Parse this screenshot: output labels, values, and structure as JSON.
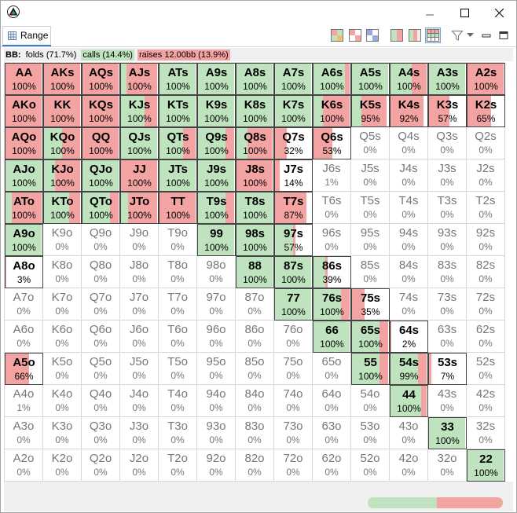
{
  "window": {
    "icon": "triangle-logo-icon",
    "controls": [
      "minimize-icon",
      "maximize-icon",
      "close-icon"
    ]
  },
  "view": {
    "tab_label": "Range",
    "tab_icon": "range-grid-icon",
    "toolbar": [
      "quadrant-view-1-icon",
      "quadrant-view-2-icon",
      "quadrant-view-3-icon",
      "split-color-view-icon",
      "bar-color-view-icon",
      "grid-color-view-icon",
      "filter-icon",
      "view-menu-icon",
      "minimize-view-icon",
      "maximize-view-icon"
    ]
  },
  "summary": {
    "player": "BB:",
    "folds": "folds (71.7%)",
    "calls": "calls (14.4%)",
    "raises": "raises 12.00bb (13.9%)"
  },
  "colors": {
    "call": "#bfe2bf",
    "raise": "#f4a3a3",
    "fold": "#ffffff"
  },
  "legend_bar": {
    "calls": 14.4,
    "raises": 13.9
  },
  "matrix": [
    [
      {
        "hand": "AA",
        "pct": "100%",
        "call": 0,
        "raise": 1
      },
      {
        "hand": "AKs",
        "pct": "100%",
        "call": 0,
        "raise": 1
      },
      {
        "hand": "AQs",
        "pct": "100%",
        "call": 0,
        "raise": 1
      },
      {
        "hand": "AJs",
        "pct": "100%",
        "call": 0.15,
        "raise": 0.85
      },
      {
        "hand": "ATs",
        "pct": "100%",
        "call": 1,
        "raise": 0
      },
      {
        "hand": "A9s",
        "pct": "100%",
        "call": 1,
        "raise": 0
      },
      {
        "hand": "A8s",
        "pct": "100%",
        "call": 1,
        "raise": 0
      },
      {
        "hand": "A7s",
        "pct": "100%",
        "call": 1,
        "raise": 0
      },
      {
        "hand": "A6s",
        "pct": "100%",
        "call": 0.88,
        "raise": 0.12
      },
      {
        "hand": "A5s",
        "pct": "100%",
        "call": 1,
        "raise": 0
      },
      {
        "hand": "A4s",
        "pct": "100%",
        "call": 0.58,
        "raise": 0.42
      },
      {
        "hand": "A3s",
        "pct": "100%",
        "call": 1,
        "raise": 0
      },
      {
        "hand": "A2s",
        "pct": "100%",
        "call": 0,
        "raise": 1
      }
    ],
    [
      {
        "hand": "AKo",
        "pct": "100%",
        "call": 0,
        "raise": 1
      },
      {
        "hand": "KK",
        "pct": "100%",
        "call": 0,
        "raise": 1
      },
      {
        "hand": "KQs",
        "pct": "100%",
        "call": 0,
        "raise": 1
      },
      {
        "hand": "KJs",
        "pct": "100%",
        "call": 0.65,
        "raise": 0.35
      },
      {
        "hand": "KTs",
        "pct": "100%",
        "call": 1,
        "raise": 0
      },
      {
        "hand": "K9s",
        "pct": "100%",
        "call": 1,
        "raise": 0
      },
      {
        "hand": "K8s",
        "pct": "100%",
        "call": 1,
        "raise": 0
      },
      {
        "hand": "K7s",
        "pct": "100%",
        "call": 1,
        "raise": 0
      },
      {
        "hand": "K6s",
        "pct": "100%",
        "call": 0.25,
        "raise": 0.75
      },
      {
        "hand": "K5s",
        "pct": "95%",
        "call": 0.25,
        "raise": 0.7
      },
      {
        "hand": "K4s",
        "pct": "92%",
        "call": 0,
        "raise": 0.92
      },
      {
        "hand": "K3s",
        "pct": "57%",
        "call": 0,
        "raise": 0.57
      },
      {
        "hand": "K2s",
        "pct": "65%",
        "call": 0,
        "raise": 0.65
      }
    ],
    [
      {
        "hand": "AQo",
        "pct": "100%",
        "call": 0,
        "raise": 1
      },
      {
        "hand": "KQo",
        "pct": "100%",
        "call": 0.5,
        "raise": 0.5
      },
      {
        "hand": "QQ",
        "pct": "100%",
        "call": 0,
        "raise": 1
      },
      {
        "hand": "QJs",
        "pct": "100%",
        "call": 1,
        "raise": 0
      },
      {
        "hand": "QTs",
        "pct": "100%",
        "call": 0.65,
        "raise": 0.35
      },
      {
        "hand": "Q9s",
        "pct": "100%",
        "call": 0.75,
        "raise": 0.25
      },
      {
        "hand": "Q8s",
        "pct": "100%",
        "call": 0.3,
        "raise": 0.7
      },
      {
        "hand": "Q7s",
        "pct": "32%",
        "call": 0,
        "raise": 0.32
      },
      {
        "hand": "Q6s",
        "pct": "53%",
        "call": 0,
        "raise": 0.53
      },
      {
        "hand": "Q5s",
        "pct": "0%",
        "call": 0,
        "raise": 0
      },
      {
        "hand": "Q4s",
        "pct": "0%",
        "call": 0,
        "raise": 0
      },
      {
        "hand": "Q3s",
        "pct": "0%",
        "call": 0,
        "raise": 0
      },
      {
        "hand": "Q2s",
        "pct": "0%",
        "call": 0,
        "raise": 0
      }
    ],
    [
      {
        "hand": "AJo",
        "pct": "100%",
        "call": 1,
        "raise": 0
      },
      {
        "hand": "KJo",
        "pct": "100%",
        "call": 0.3,
        "raise": 0.7
      },
      {
        "hand": "QJo",
        "pct": "100%",
        "call": 1,
        "raise": 0
      },
      {
        "hand": "JJ",
        "pct": "100%",
        "call": 0,
        "raise": 1
      },
      {
        "hand": "JTs",
        "pct": "100%",
        "call": 1,
        "raise": 0
      },
      {
        "hand": "J9s",
        "pct": "100%",
        "call": 1,
        "raise": 0
      },
      {
        "hand": "J8s",
        "pct": "100%",
        "call": 0,
        "raise": 1
      },
      {
        "hand": "J7s",
        "pct": "14%",
        "call": 0,
        "raise": 0.14
      },
      {
        "hand": "J6s",
        "pct": "1%",
        "call": 0,
        "raise": 0
      },
      {
        "hand": "J5s",
        "pct": "0%",
        "call": 0,
        "raise": 0
      },
      {
        "hand": "J4s",
        "pct": "0%",
        "call": 0,
        "raise": 0
      },
      {
        "hand": "J3s",
        "pct": "0%",
        "call": 0,
        "raise": 0
      },
      {
        "hand": "J2s",
        "pct": "0%",
        "call": 0,
        "raise": 0
      }
    ],
    [
      {
        "hand": "ATo",
        "pct": "100%",
        "call": 0.18,
        "raise": 0.82
      },
      {
        "hand": "KTo",
        "pct": "100%",
        "call": 0.7,
        "raise": 0.3
      },
      {
        "hand": "QTo",
        "pct": "100%",
        "call": 0.75,
        "raise": 0.25
      },
      {
        "hand": "JTo",
        "pct": "100%",
        "call": 0.2,
        "raise": 0.8
      },
      {
        "hand": "TT",
        "pct": "100%",
        "call": 0,
        "raise": 1
      },
      {
        "hand": "T9s",
        "pct": "100%",
        "call": 0.75,
        "raise": 0.25
      },
      {
        "hand": "T8s",
        "pct": "100%",
        "call": 1,
        "raise": 0
      },
      {
        "hand": "T7s",
        "pct": "87%",
        "call": 0,
        "raise": 0.87
      },
      {
        "hand": "T6s",
        "pct": "0%",
        "call": 0,
        "raise": 0
      },
      {
        "hand": "T5s",
        "pct": "0%",
        "call": 0,
        "raise": 0
      },
      {
        "hand": "T4s",
        "pct": "0%",
        "call": 0,
        "raise": 0
      },
      {
        "hand": "T3s",
        "pct": "0%",
        "call": 0,
        "raise": 0
      },
      {
        "hand": "T2s",
        "pct": "0%",
        "call": 0,
        "raise": 0
      }
    ],
    [
      {
        "hand": "A9o",
        "pct": "100%",
        "call": 1,
        "raise": 0
      },
      {
        "hand": "K9o",
        "pct": "0%",
        "call": 0,
        "raise": 0
      },
      {
        "hand": "Q9o",
        "pct": "0%",
        "call": 0,
        "raise": 0
      },
      {
        "hand": "J9o",
        "pct": "0%",
        "call": 0,
        "raise": 0
      },
      {
        "hand": "T9o",
        "pct": "0%",
        "call": 0,
        "raise": 0
      },
      {
        "hand": "99",
        "pct": "100%",
        "call": 1,
        "raise": 0
      },
      {
        "hand": "98s",
        "pct": "100%",
        "call": 1,
        "raise": 0
      },
      {
        "hand": "97s",
        "pct": "57%",
        "call": 0.5,
        "raise": 0.07
      },
      {
        "hand": "96s",
        "pct": "0%",
        "call": 0,
        "raise": 0
      },
      {
        "hand": "95s",
        "pct": "0%",
        "call": 0,
        "raise": 0
      },
      {
        "hand": "94s",
        "pct": "0%",
        "call": 0,
        "raise": 0
      },
      {
        "hand": "93s",
        "pct": "0%",
        "call": 0,
        "raise": 0
      },
      {
        "hand": "92s",
        "pct": "0%",
        "call": 0,
        "raise": 0
      }
    ],
    [
      {
        "hand": "A8o",
        "pct": "3%",
        "call": 0,
        "raise": 0.03
      },
      {
        "hand": "K8o",
        "pct": "0%",
        "call": 0,
        "raise": 0
      },
      {
        "hand": "Q8o",
        "pct": "0%",
        "call": 0,
        "raise": 0
      },
      {
        "hand": "J8o",
        "pct": "0%",
        "call": 0,
        "raise": 0
      },
      {
        "hand": "T8o",
        "pct": "0%",
        "call": 0,
        "raise": 0
      },
      {
        "hand": "98o",
        "pct": "0%",
        "call": 0,
        "raise": 0
      },
      {
        "hand": "88",
        "pct": "100%",
        "call": 1,
        "raise": 0
      },
      {
        "hand": "87s",
        "pct": "100%",
        "call": 1,
        "raise": 0
      },
      {
        "hand": "86s",
        "pct": "39%",
        "call": 0.32,
        "raise": 0.07
      },
      {
        "hand": "85s",
        "pct": "0%",
        "call": 0,
        "raise": 0
      },
      {
        "hand": "84s",
        "pct": "0%",
        "call": 0,
        "raise": 0
      },
      {
        "hand": "83s",
        "pct": "0%",
        "call": 0,
        "raise": 0
      },
      {
        "hand": "82s",
        "pct": "0%",
        "call": 0,
        "raise": 0
      }
    ],
    [
      {
        "hand": "A7o",
        "pct": "0%",
        "call": 0,
        "raise": 0
      },
      {
        "hand": "K7o",
        "pct": "0%",
        "call": 0,
        "raise": 0
      },
      {
        "hand": "Q7o",
        "pct": "0%",
        "call": 0,
        "raise": 0
      },
      {
        "hand": "J7o",
        "pct": "0%",
        "call": 0,
        "raise": 0
      },
      {
        "hand": "T7o",
        "pct": "0%",
        "call": 0,
        "raise": 0
      },
      {
        "hand": "97o",
        "pct": "0%",
        "call": 0,
        "raise": 0
      },
      {
        "hand": "87o",
        "pct": "0%",
        "call": 0,
        "raise": 0
      },
      {
        "hand": "77",
        "pct": "100%",
        "call": 1,
        "raise": 0
      },
      {
        "hand": "76s",
        "pct": "100%",
        "call": 0.75,
        "raise": 0.25
      },
      {
        "hand": "75s",
        "pct": "35%",
        "call": 0,
        "raise": 0.35
      },
      {
        "hand": "74s",
        "pct": "0%",
        "call": 0,
        "raise": 0
      },
      {
        "hand": "73s",
        "pct": "0%",
        "call": 0,
        "raise": 0
      },
      {
        "hand": "72s",
        "pct": "0%",
        "call": 0,
        "raise": 0
      }
    ],
    [
      {
        "hand": "A6o",
        "pct": "0%",
        "call": 0,
        "raise": 0
      },
      {
        "hand": "K6o",
        "pct": "0%",
        "call": 0,
        "raise": 0
      },
      {
        "hand": "Q6o",
        "pct": "0%",
        "call": 0,
        "raise": 0
      },
      {
        "hand": "J6o",
        "pct": "0%",
        "call": 0,
        "raise": 0
      },
      {
        "hand": "T6o",
        "pct": "0%",
        "call": 0,
        "raise": 0
      },
      {
        "hand": "96o",
        "pct": "0%",
        "call": 0,
        "raise": 0
      },
      {
        "hand": "86o",
        "pct": "0%",
        "call": 0,
        "raise": 0
      },
      {
        "hand": "76o",
        "pct": "0%",
        "call": 0,
        "raise": 0
      },
      {
        "hand": "66",
        "pct": "100%",
        "call": 1,
        "raise": 0
      },
      {
        "hand": "65s",
        "pct": "100%",
        "call": 0.75,
        "raise": 0.25
      },
      {
        "hand": "64s",
        "pct": "2%",
        "call": 0,
        "raise": 0.02
      },
      {
        "hand": "63s",
        "pct": "0%",
        "call": 0,
        "raise": 0
      },
      {
        "hand": "62s",
        "pct": "0%",
        "call": 0,
        "raise": 0
      }
    ],
    [
      {
        "hand": "A5o",
        "pct": "66%",
        "call": 0,
        "raise": 0.66
      },
      {
        "hand": "K5o",
        "pct": "0%",
        "call": 0,
        "raise": 0
      },
      {
        "hand": "Q5o",
        "pct": "0%",
        "call": 0,
        "raise": 0
      },
      {
        "hand": "J5o",
        "pct": "0%",
        "call": 0,
        "raise": 0
      },
      {
        "hand": "T5o",
        "pct": "0%",
        "call": 0,
        "raise": 0
      },
      {
        "hand": "95o",
        "pct": "0%",
        "call": 0,
        "raise": 0
      },
      {
        "hand": "85o",
        "pct": "0%",
        "call": 0,
        "raise": 0
      },
      {
        "hand": "75o",
        "pct": "0%",
        "call": 0,
        "raise": 0
      },
      {
        "hand": "65o",
        "pct": "0%",
        "call": 0,
        "raise": 0
      },
      {
        "hand": "55",
        "pct": "100%",
        "call": 0.75,
        "raise": 0.25
      },
      {
        "hand": "54s",
        "pct": "99%",
        "call": 0.75,
        "raise": 0.24
      },
      {
        "hand": "53s",
        "pct": "7%",
        "call": 0,
        "raise": 0.07
      },
      {
        "hand": "52s",
        "pct": "0%",
        "call": 0,
        "raise": 0
      }
    ],
    [
      {
        "hand": "A4o",
        "pct": "1%",
        "call": 0,
        "raise": 0
      },
      {
        "hand": "K4o",
        "pct": "0%",
        "call": 0,
        "raise": 0
      },
      {
        "hand": "Q4o",
        "pct": "0%",
        "call": 0,
        "raise": 0
      },
      {
        "hand": "J4o",
        "pct": "0%",
        "call": 0,
        "raise": 0
      },
      {
        "hand": "T4o",
        "pct": "0%",
        "call": 0,
        "raise": 0
      },
      {
        "hand": "94o",
        "pct": "0%",
        "call": 0,
        "raise": 0
      },
      {
        "hand": "84o",
        "pct": "0%",
        "call": 0,
        "raise": 0
      },
      {
        "hand": "74o",
        "pct": "0%",
        "call": 0,
        "raise": 0
      },
      {
        "hand": "64o",
        "pct": "0%",
        "call": 0,
        "raise": 0
      },
      {
        "hand": "54o",
        "pct": "0%",
        "call": 0,
        "raise": 0
      },
      {
        "hand": "44",
        "pct": "100%",
        "call": 0.85,
        "raise": 0.15
      },
      {
        "hand": "43s",
        "pct": "0%",
        "call": 0,
        "raise": 0
      },
      {
        "hand": "42s",
        "pct": "0%",
        "call": 0,
        "raise": 0
      }
    ],
    [
      {
        "hand": "A3o",
        "pct": "0%",
        "call": 0,
        "raise": 0
      },
      {
        "hand": "K3o",
        "pct": "0%",
        "call": 0,
        "raise": 0
      },
      {
        "hand": "Q3o",
        "pct": "0%",
        "call": 0,
        "raise": 0
      },
      {
        "hand": "J3o",
        "pct": "0%",
        "call": 0,
        "raise": 0
      },
      {
        "hand": "T3o",
        "pct": "0%",
        "call": 0,
        "raise": 0
      },
      {
        "hand": "93o",
        "pct": "0%",
        "call": 0,
        "raise": 0
      },
      {
        "hand": "83o",
        "pct": "0%",
        "call": 0,
        "raise": 0
      },
      {
        "hand": "73o",
        "pct": "0%",
        "call": 0,
        "raise": 0
      },
      {
        "hand": "63o",
        "pct": "0%",
        "call": 0,
        "raise": 0
      },
      {
        "hand": "53o",
        "pct": "0%",
        "call": 0,
        "raise": 0
      },
      {
        "hand": "43o",
        "pct": "0%",
        "call": 0,
        "raise": 0
      },
      {
        "hand": "33",
        "pct": "100%",
        "call": 1,
        "raise": 0
      },
      {
        "hand": "32s",
        "pct": "0%",
        "call": 0,
        "raise": 0
      }
    ],
    [
      {
        "hand": "A2o",
        "pct": "0%",
        "call": 0,
        "raise": 0
      },
      {
        "hand": "K2o",
        "pct": "0%",
        "call": 0,
        "raise": 0
      },
      {
        "hand": "Q2o",
        "pct": "0%",
        "call": 0,
        "raise": 0
      },
      {
        "hand": "J2o",
        "pct": "0%",
        "call": 0,
        "raise": 0
      },
      {
        "hand": "T2o",
        "pct": "0%",
        "call": 0,
        "raise": 0
      },
      {
        "hand": "92o",
        "pct": "0%",
        "call": 0,
        "raise": 0
      },
      {
        "hand": "82o",
        "pct": "0%",
        "call": 0,
        "raise": 0
      },
      {
        "hand": "72o",
        "pct": "0%",
        "call": 0,
        "raise": 0
      },
      {
        "hand": "62o",
        "pct": "0%",
        "call": 0,
        "raise": 0
      },
      {
        "hand": "52o",
        "pct": "0%",
        "call": 0,
        "raise": 0
      },
      {
        "hand": "42o",
        "pct": "0%",
        "call": 0,
        "raise": 0
      },
      {
        "hand": "32o",
        "pct": "0%",
        "call": 0,
        "raise": 0
      },
      {
        "hand": "22",
        "pct": "100%",
        "call": 1,
        "raise": 0
      }
    ]
  ]
}
